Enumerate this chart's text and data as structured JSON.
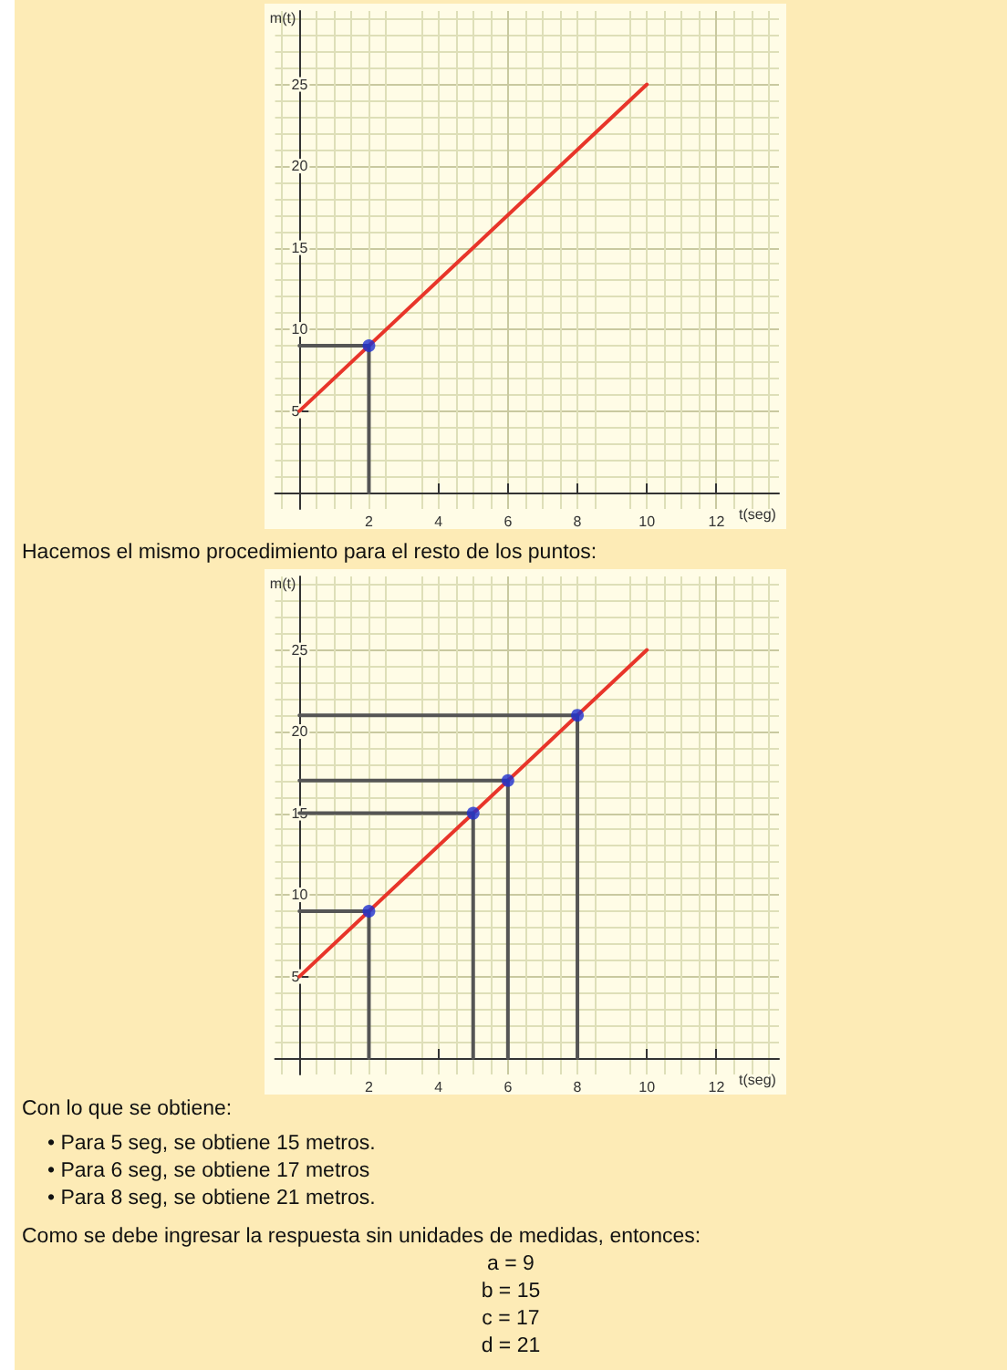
{
  "chart_data": [
    {
      "type": "line",
      "xlabel": "t(seg)",
      "ylabel": "m(t)",
      "xlim": [
        -0.7,
        13.8
      ],
      "ylim": [
        -1,
        29.5
      ],
      "xticks": [
        2,
        4,
        6,
        8,
        10,
        12
      ],
      "yticks": [
        5,
        10,
        15,
        20,
        25
      ],
      "grid": true,
      "series": [
        {
          "color": "#e8352a",
          "x": [
            0,
            10
          ],
          "values": [
            5,
            25
          ],
          "marker": "none"
        },
        {
          "color": "#555555",
          "x": [
            0,
            2,
            2
          ],
          "values": [
            9,
            9,
            0
          ],
          "marker": "none"
        },
        {
          "type": "scatter",
          "color": "#1f2fd0",
          "x": [
            2
          ],
          "values": [
            9
          ],
          "marker": "circle"
        }
      ]
    },
    {
      "type": "line",
      "title": "Hacemos el mismo procedimiento para el resto de los puntos:",
      "xlabel": "t(seg)",
      "ylabel": "m(t)",
      "xlim": [
        -0.7,
        13.8
      ],
      "ylim": [
        -1,
        29.5
      ],
      "xticks": [
        2,
        4,
        6,
        8,
        10,
        12
      ],
      "yticks": [
        5,
        10,
        15,
        20,
        25
      ],
      "grid": true,
      "series": [
        {
          "color": "#e8352a",
          "x": [
            0,
            10
          ],
          "values": [
            5,
            25
          ],
          "marker": "none"
        },
        {
          "color": "#555555",
          "x": [
            0,
            2,
            2
          ],
          "values": [
            9,
            9,
            0
          ],
          "marker": "none"
        },
        {
          "color": "#555555",
          "x": [
            0,
            5,
            5
          ],
          "values": [
            15,
            15,
            0
          ],
          "marker": "none"
        },
        {
          "color": "#555555",
          "x": [
            0,
            6,
            6
          ],
          "values": [
            17,
            17,
            0
          ],
          "marker": "none"
        },
        {
          "color": "#555555",
          "x": [
            0,
            8,
            8
          ],
          "values": [
            21,
            21,
            0
          ],
          "marker": "none"
        },
        {
          "type": "scatter",
          "color": "#1f2fd0",
          "x": [
            2,
            5,
            6,
            8
          ],
          "values": [
            9,
            15,
            17,
            21
          ],
          "marker": "circle"
        }
      ],
      "annotations": [
        "Con lo que se obtiene:",
        "• Para 5 seg, se obtiene 15 metros.",
        "• Para 6 seg, se obtiene 17 metros",
        "• Para 8 seg, se obtiene 21 metros.",
        "Como se debe ingresar la respuesta sin unidades de medidas, entonces:",
        "a = 9",
        "b = 15",
        "c = 17",
        "d = 21"
      ]
    }
  ]
}
